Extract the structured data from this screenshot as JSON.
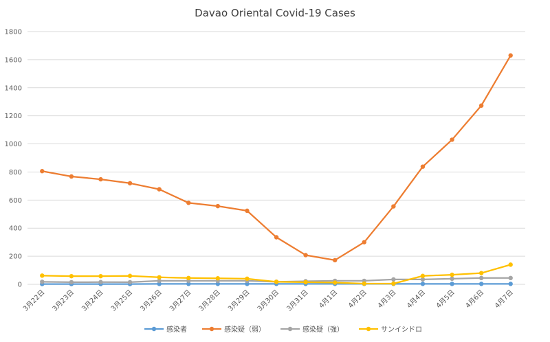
{
  "chart_data": {
    "type": "line",
    "title": "Davao Oriental Covid-19 Cases",
    "xlabel": "",
    "ylabel": "",
    "ylim": [
      0,
      1800
    ],
    "yticks": [
      0,
      200,
      400,
      600,
      800,
      1000,
      1200,
      1400,
      1600,
      1800
    ],
    "grid": true,
    "legend_position": "bottom",
    "categories": [
      "3月22日",
      "3月23日",
      "3月24日",
      "3月25日",
      "3月26日",
      "3月27日",
      "3月28日",
      "3月29日",
      "3月30日",
      "3月31日",
      "4月1日",
      "4月2日",
      "4月3日",
      "4月4日",
      "4月5日",
      "4月6日",
      "4月7日"
    ],
    "series": [
      {
        "name": "感染者",
        "color": "#5b9bd5",
        "values": [
          2,
          2,
          2,
          2,
          3,
          3,
          3,
          3,
          3,
          3,
          3,
          3,
          3,
          3,
          3,
          3,
          3
        ]
      },
      {
        "name": "感染疑（弱）",
        "color": "#ed7d31",
        "values": [
          806,
          768,
          748,
          720,
          677,
          580,
          557,
          524,
          335,
          208,
          172,
          300,
          555,
          838,
          1030,
          1273,
          1630
        ]
      },
      {
        "name": "感染疑（強）",
        "color": "#a5a5a5",
        "values": [
          18,
          15,
          16,
          15,
          25,
          25,
          25,
          25,
          18,
          22,
          25,
          25,
          35,
          35,
          40,
          45,
          45
        ]
      },
      {
        "name": "サンイシドロ",
        "color": "#ffc000",
        "values": [
          62,
          58,
          58,
          60,
          50,
          45,
          43,
          40,
          18,
          15,
          12,
          5,
          5,
          60,
          68,
          80,
          140
        ]
      }
    ]
  }
}
